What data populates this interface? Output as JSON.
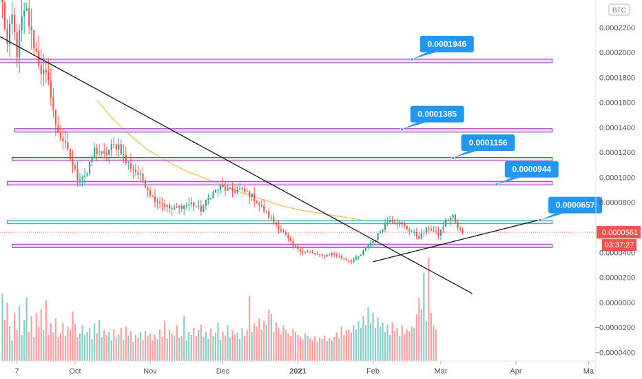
{
  "chart_data": {
    "type": "candlestick",
    "unit_label": "BTC",
    "price_axis": {
      "ticks": [
        "0.0002200",
        "0.0002000",
        "0.0001800",
        "0.0001600",
        "0.0001400",
        "0.0001200",
        "0.0001000",
        "0.0000800",
        "0.0000400",
        "0.0000200",
        "0.0000000",
        "−0.0000200",
        "−0.0000400"
      ],
      "tick_values": [
        0.00022,
        0.0002,
        0.00018,
        0.00016,
        0.00014,
        0.00012,
        0.0001,
        8e-05,
        4e-05,
        2e-05,
        0.0,
        -2e-05,
        -4e-05
      ],
      "ylim": [
        -4.7e-05,
        0.000242
      ]
    },
    "time_axis": {
      "labels": [
        "7",
        "Oct",
        "Nov",
        "Dec",
        "2021",
        "Feb",
        "Mar",
        "Apr",
        "Ma"
      ],
      "label_days": [
        6,
        30,
        61,
        91,
        122,
        153,
        181,
        212,
        242
      ],
      "xlim": [
        -1,
        245
      ]
    },
    "current_price": {
      "label": "0.0000561",
      "value": 5.61e-05,
      "color": "#ef5350"
    },
    "countdown": {
      "label": "03:37:27",
      "color": "#ef5350"
    },
    "levels": [
      {
        "label": "0.0001946",
        "value": 0.0001946,
        "band": [
          0.0001925,
          0.0001946
        ],
        "day_from": -6,
        "day_to": 227,
        "fill": "#d1c4e9",
        "stroke": "#9c27b0",
        "callout_day": 169
      },
      {
        "label": "0.0001385",
        "value": 0.0001385,
        "band": [
          0.0001375,
          0.000139
        ],
        "day_from": 5,
        "day_to": 227,
        "fill": "#d1c4e9",
        "stroke": "#9c27b0",
        "callout_day": 165
      },
      {
        "label": "0.0001156",
        "value": 0.0001156,
        "band": [
          0.0001145,
          0.000116
        ],
        "day_from": 4,
        "day_to": 227,
        "fill": "#d1c4e9",
        "stroke": "#9c27b0",
        "callout_day": 186
      },
      {
        "label": "0.0000944",
        "value": 9.44e-05,
        "band": [
          9.44e-05,
          9.68e-05
        ],
        "day_from": 2,
        "day_to": 227,
        "fill": "#d1c4e9",
        "stroke": "#9c27b0",
        "callout_day": 204
      },
      {
        "label": "0.0000657",
        "value": 6.57e-05,
        "band": [
          6.33e-05,
          6.57e-05
        ],
        "day_from": 2,
        "day_to": 227,
        "fill": "#b2ebf2",
        "stroke": "#26a69a",
        "callout_day": 222
      },
      {
        "band": [
          4.42e-05,
          4.66e-05
        ],
        "day_from": 4,
        "day_to": 227,
        "fill": "#d1c4e9",
        "stroke": "#9c27b0"
      }
    ],
    "trendlines": [
      {
        "name": "descending",
        "from": [
          -6,
          0.000218
        ],
        "to": [
          194,
          7e-06
        ],
        "color": "#131722"
      },
      {
        "name": "ascending",
        "from": [
          153,
          3.25e-05
        ],
        "to": [
          221,
          6.57e-05
        ],
        "color": "#131722"
      }
    ],
    "moving_average": {
      "color": "#f5a623",
      "points": [
        [
          39,
          0.000162
        ],
        [
          45,
          0.000148
        ],
        [
          52,
          0.000135
        ],
        [
          60,
          0.000122
        ],
        [
          68,
          0.000113
        ],
        [
          76,
          0.000105
        ],
        [
          84,
          9.9e-05
        ],
        [
          92,
          9.3e-05
        ],
        [
          100,
          8.7e-05
        ],
        [
          108,
          8.2e-05
        ],
        [
          116,
          7.7e-05
        ],
        [
          124,
          7.35e-05
        ],
        [
          132,
          7.1e-05
        ],
        [
          140,
          6.85e-05
        ],
        [
          148,
          6.62e-05
        ]
      ]
    },
    "volume": {
      "scale_max": 0.000165,
      "color_up": "#26a69a",
      "color_down": "#ef5350",
      "bars": [
        9.8e-05,
        6e-05,
        8.5e-05,
        5e-05,
        3e-05,
        7e-05,
        4.5e-05,
        8e-05,
        3.8e-05,
        6e-05,
        9.2e-05,
        4.2e-05,
        6.5e-05,
        3.5e-05,
        7e-05,
        5e-05,
        7.5e-05,
        4.5e-05,
        8.8e-05,
        3.8e-05,
        5.5e-05,
        4.2e-05,
        6.2e-05,
        3.5e-05,
        4e-05,
        5.5e-05,
        3.6e-05,
        5e-05,
        4.5e-05,
        7.2e-05,
        5.4e-05,
        3.5e-05,
        4e-05,
        5.2e-05,
        3.8e-05,
        4.2e-05,
        4.8e-05,
        3.2e-05,
        5.5e-05,
        4e-05,
        6e-05,
        3.5e-05,
        4.5e-05,
        3.8e-05,
        4.2e-05,
        3e-05,
        4.6e-05,
        3.4e-05,
        3.9e-05,
        4.8e-05,
        3.1e-05,
        5e-05,
        3.7e-05,
        4.3e-05,
        2.8e-05,
        3.8e-05,
        3.4e-05,
        4.2e-05,
        3e-05,
        4.4e-05,
        3.6e-05,
        4e-05,
        3e-05,
        3.8e-05,
        3.2e-05,
        4.6e-05,
        3.5e-05,
        5.8e-05,
        3.3e-05,
        4.5e-05,
        4e-05,
        3.7e-05,
        5.2e-05,
        3.4e-05,
        3.6e-05,
        6.5e-05,
        3e-05,
        4.2e-05,
        3.8e-05,
        4.8e-05,
        3.6e-05,
        4.5e-05,
        5.3e-05,
        3.5e-05,
        4.2e-05,
        3.2e-05,
        4.7e-05,
        3.6e-05,
        4.1e-05,
        5.6e-05,
        3.1e-05,
        4.3e-05,
        3.7e-05,
        5.2e-05,
        3.4e-05,
        4.5e-05,
        3.8e-05,
        4.1e-05,
        3.2e-05,
        4.8e-05,
        3.6e-05,
        4.5e-05,
        9.4e-05,
        4.2e-05,
        5.5e-05,
        5e-05,
        6.2e-05,
        4.6e-05,
        5.8e-05,
        5.2e-05,
        7.5e-05,
        6.8e-05,
        4.2e-05,
        5.6e-05,
        4.8e-05,
        3.9e-05,
        5.2e-05,
        4.5e-05,
        4e-05,
        3.6e-05,
        4.7e-05,
        4.2e-05,
        3.8e-05,
        3.5e-05,
        3.1e-05,
        4e-05,
        3.6e-05,
        3.3e-05,
        3e-05,
        3.6e-05,
        2.8e-05,
        3.4e-05,
        3.2e-05,
        3.7e-05,
        2.9e-05,
        3.3e-05,
        3e-05,
        3.5e-05,
        4.2e-05,
        3.3e-05,
        5e-05,
        3.8e-05,
        4.5e-05,
        4.6e-05,
        4.1e-05,
        5.2e-05,
        4.6e-05,
        5.8e-05,
        4.8e-05,
        6.5e-05,
        5.2e-05,
        7.8e-05,
        5.5e-05,
        7e-05,
        4.8e-05,
        6.3e-05,
        5e-05,
        5.6e-05,
        4.2e-05,
        5.3e-05,
        3.8e-05,
        5.6e-05,
        4.4e-05,
        4.8e-05,
        3.6e-05,
        5.2e-05,
        3.9e-05,
        4.6e-05,
        4.3e-05,
        5e-05,
        4.8e-05,
        6.8e-05,
        9.2e-05,
        7.5e-05,
        0.000128,
        5.8e-05,
        0.00015,
        7e-05,
        5.2e-05,
        4.6e-05
      ]
    }
  }
}
